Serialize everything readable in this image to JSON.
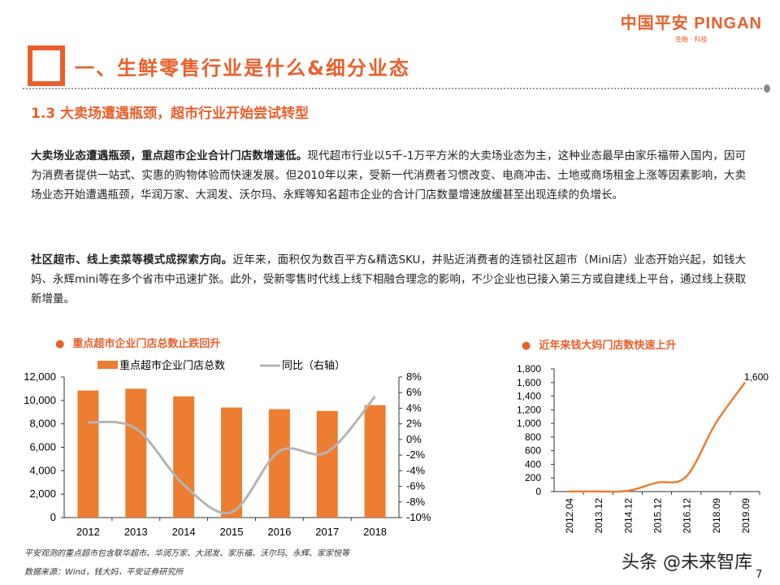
{
  "logo": {
    "main": "中国平安 PINGAN",
    "sub": "金融 · 科技"
  },
  "header": {
    "title": "一、生鲜零售行业是什么&细分业态",
    "subtitle": "1.3  大卖场遭遇瓶颈，超市行业开始尝试转型"
  },
  "paragraphs": [
    {
      "bold": "大卖场业态遭遇瓶颈，重点超市企业合计门店数增速低。",
      "text": "现代超市行业以5千-1万平方米的大卖场业态为主，这种业态最早由家乐福带入国内，因可为消费者提供一站式、实惠的购物体验而快速发展。但2010年以来，受新一代消费者习惯改变、电商冲击、土地或商场租金上涨等因素影响，大卖场业态开始遭遇瓶颈，华润万家、大润发、沃尔玛、永辉等知名超市企业的合计门店数量增速放缓甚至出现连续的负增长。"
    },
    {
      "bold": "社区超市、线上卖菜等模式成探索方向。",
      "text": "近年来，面积仅为数百平方&精选SKU，并贴近消费者的连锁社区超市（Mini店）业态开始兴起，如钱大妈、永辉mini等在多个省市中迅速扩张。此外，受新零售时代线上线下相融合理念的影响，不少企业也已接入第三方或自建线上平台，通过线上获取新增量。"
    }
  ],
  "notes": [
    "平安观测的重点超市包含联华超市、华润万家、大润发、家乐福、沃尔玛、永辉、家家悦等",
    "数据来源：Wind，钱大妈，平安证券研究所"
  ],
  "watermark": "头条 @未来智库",
  "page_number": "7",
  "chart_data": [
    {
      "type": "bar",
      "title": "重点超市企业门店总数止跌回升",
      "categories": [
        "2012",
        "2013",
        "2014",
        "2015",
        "2016",
        "2017",
        "2018"
      ],
      "series": [
        {
          "name": "重点超市企业门店总数",
          "type": "bar",
          "axis": "left",
          "color": "#ed7d31",
          "values": [
            10850,
            11000,
            10350,
            9400,
            9250,
            9100,
            9600
          ]
        },
        {
          "name": "同比（右轴）",
          "type": "line",
          "axis": "right",
          "color": "#b4b4b4",
          "values": [
            2.2,
            1.4,
            -5.8,
            -9.3,
            -1.5,
            -1.6,
            5.5
          ]
        }
      ],
      "ylim": [
        0,
        12000
      ],
      "yticks": [
        "0",
        "2,000",
        "4,000",
        "6,000",
        "8,000",
        "10,000",
        "12,000"
      ],
      "y2lim": [
        -10,
        8
      ],
      "y2ticks": [
        "-10%",
        "-8%",
        "-6%",
        "-4%",
        "-2%",
        "0%",
        "2%",
        "4%",
        "6%",
        "8%"
      ],
      "legend": "top"
    },
    {
      "type": "line",
      "title": "近年来钱大妈门店数快速上升",
      "categories": [
        "2012.04",
        "2013.12",
        "2014.12",
        "2015.12",
        "2016.12",
        "2018.09",
        "2019.09"
      ],
      "values": [
        0,
        2,
        10,
        130,
        220,
        1000,
        1600
      ],
      "color": "#ed7d31",
      "data_labels": {
        "2019.09": "1,600"
      },
      "ylim": [
        0,
        1800
      ],
      "yticks": [
        "0",
        "200",
        "400",
        "600",
        "800",
        "1,000",
        "1,200",
        "1,400",
        "1,600",
        "1,800"
      ]
    }
  ]
}
